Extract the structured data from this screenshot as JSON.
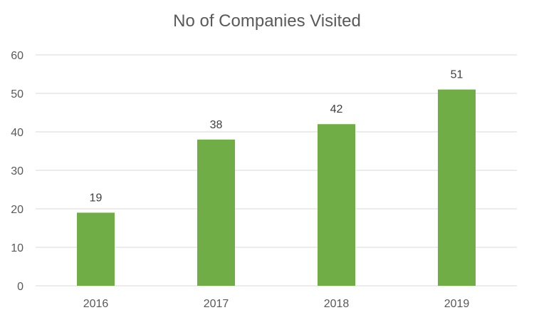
{
  "chart_data": {
    "type": "bar",
    "title": "No of Companies Visited",
    "categories": [
      "2016",
      "2017",
      "2018",
      "2019"
    ],
    "values": [
      19,
      38,
      42,
      51
    ],
    "data_labels": [
      "19",
      "38",
      "42",
      "51"
    ],
    "xlabel": "",
    "ylabel": "",
    "ylim": [
      0,
      60
    ],
    "yticks": [
      0,
      10,
      20,
      30,
      40,
      50,
      60
    ],
    "grid": true,
    "legend": "none",
    "bar_color": "#70AD47",
    "grid_color": "#D9D9D9"
  }
}
